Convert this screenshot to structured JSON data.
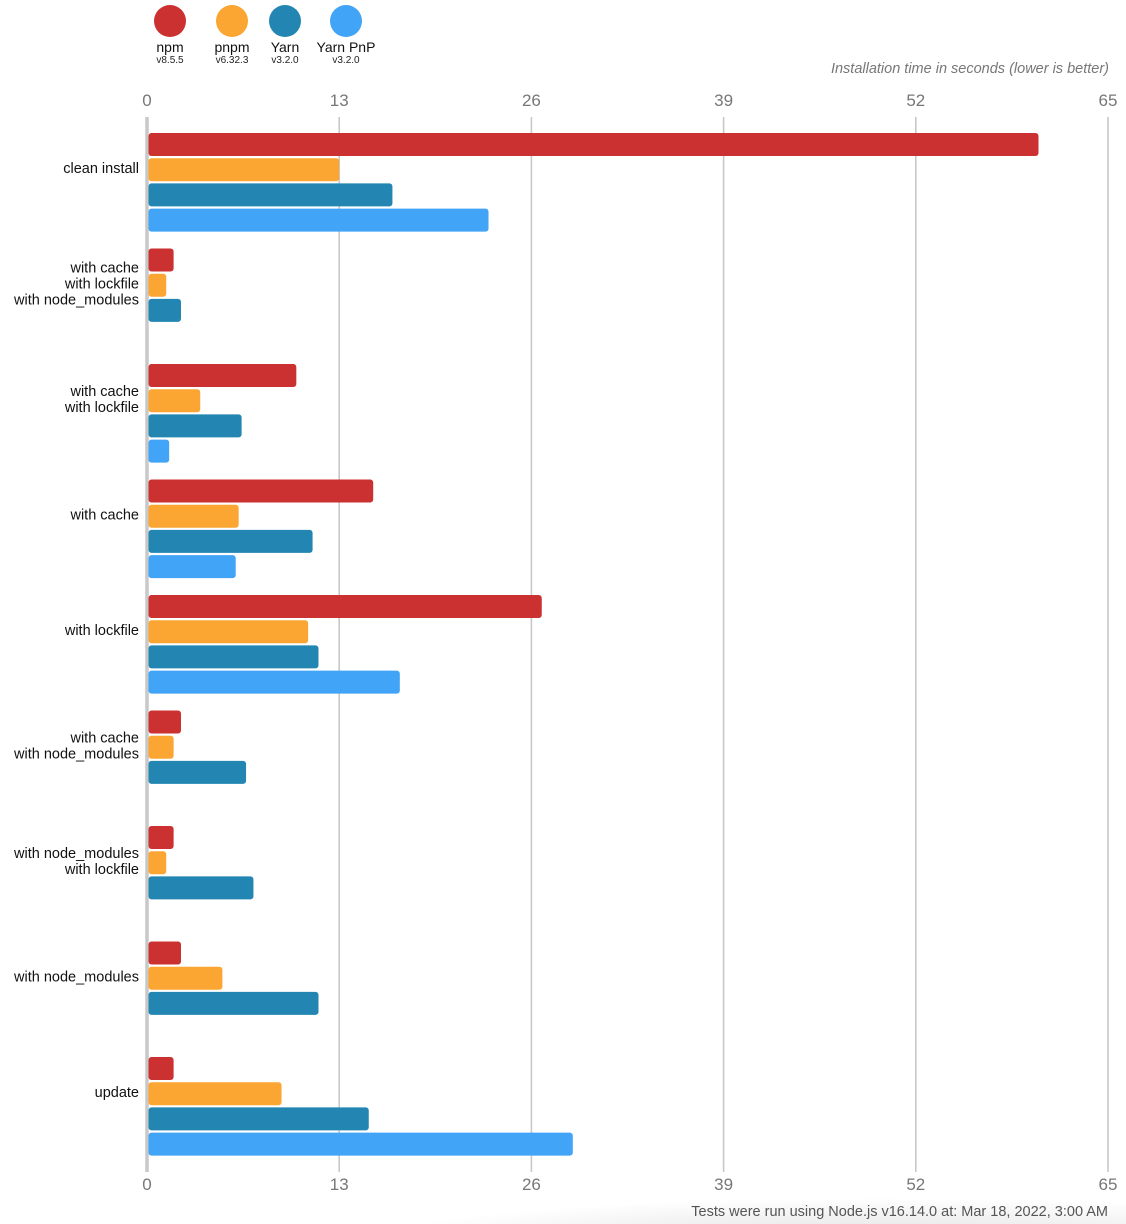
{
  "legend": [
    {
      "name": "npm",
      "version": "v8.5.5",
      "color": "#cc3131"
    },
    {
      "name": "pnpm",
      "version": "v6.32.3",
      "color": "#fba532"
    },
    {
      "name": "Yarn",
      "version": "v3.2.0",
      "color": "#2386b2"
    },
    {
      "name": "Yarn PnP",
      "version": "v3.2.0",
      "color": "#42a4f7"
    }
  ],
  "axis_title": "Installation time in seconds (lower is better)",
  "footer": "Tests were run using Node.js v16.14.0 at: Mar 18, 2022, 3:00 AM",
  "chart_data": {
    "type": "bar",
    "orientation": "horizontal",
    "title": "",
    "xlabel": "Installation time in seconds (lower is better)",
    "ylabel": "",
    "xlim": [
      0,
      65
    ],
    "xticks": [
      0,
      13,
      26,
      39,
      52,
      65
    ],
    "grid": true,
    "legend_position": "top-left",
    "categories": [
      [
        "clean install"
      ],
      [
        "with cache",
        "with lockfile",
        "with node_modules"
      ],
      [
        "with cache",
        "with lockfile"
      ],
      [
        "with cache"
      ],
      [
        "with lockfile"
      ],
      [
        "with cache",
        "with node_modules"
      ],
      [
        "with node_modules",
        "with lockfile"
      ],
      [
        "with node_modules"
      ],
      [
        "update"
      ]
    ],
    "series": [
      {
        "name": "npm",
        "version": "v8.5.5",
        "color": "#cc3131",
        "values": [
          60.3,
          1.8,
          10.1,
          15.3,
          26.7,
          2.3,
          1.8,
          2.3,
          1.8
        ]
      },
      {
        "name": "pnpm",
        "version": "v6.32.3",
        "color": "#fba532",
        "values": [
          13.0,
          1.3,
          3.6,
          6.2,
          10.9,
          1.8,
          1.3,
          5.1,
          9.1
        ]
      },
      {
        "name": "Yarn",
        "version": "v3.2.0",
        "color": "#2386b2",
        "values": [
          16.6,
          2.3,
          6.4,
          11.2,
          11.6,
          6.7,
          7.2,
          11.6,
          15.0
        ]
      },
      {
        "name": "Yarn PnP",
        "version": "v3.2.0",
        "color": "#42a4f7",
        "values": [
          23.1,
          null,
          1.5,
          6.0,
          17.1,
          null,
          null,
          null,
          28.8
        ]
      }
    ]
  }
}
